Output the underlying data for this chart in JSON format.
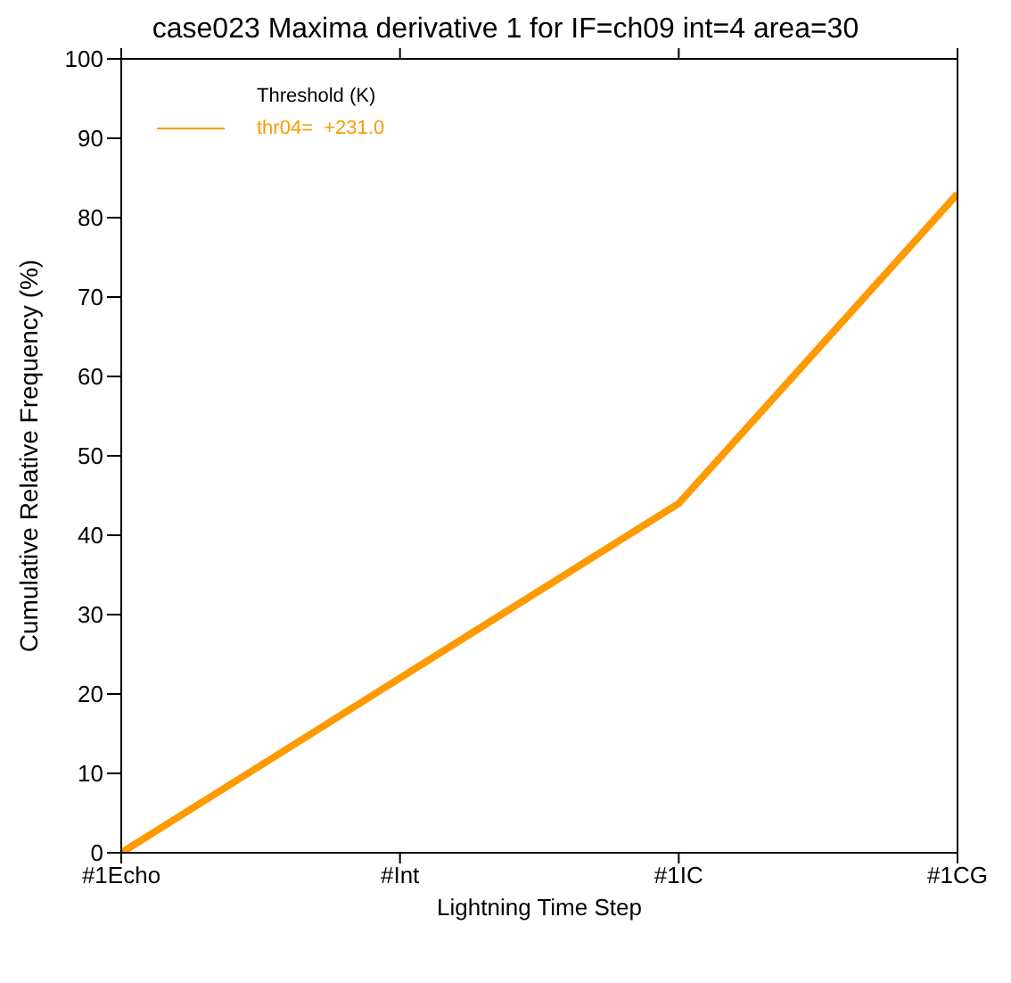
{
  "chart_data": {
    "type": "line",
    "title": "case023  Maxima derivative 1 for IF=ch09 int=4 area=30",
    "xlabel": "Lightning Time Step",
    "ylabel": "Cumulative Relative Frequency (%)",
    "legend_title": "Threshold (K)",
    "categories": [
      "#1Echo",
      "#Int",
      "#1IC",
      "#1CG"
    ],
    "series": [
      {
        "name": "thr04=  +231.0",
        "color": "#ff9900",
        "values": [
          0,
          22,
          44,
          83
        ]
      }
    ],
    "ylim": [
      0,
      100
    ],
    "yticks": [
      0,
      10,
      20,
      30,
      40,
      50,
      60,
      70,
      80,
      90,
      100
    ],
    "legend": "top left",
    "marker": "none",
    "line_style": "solid"
  }
}
